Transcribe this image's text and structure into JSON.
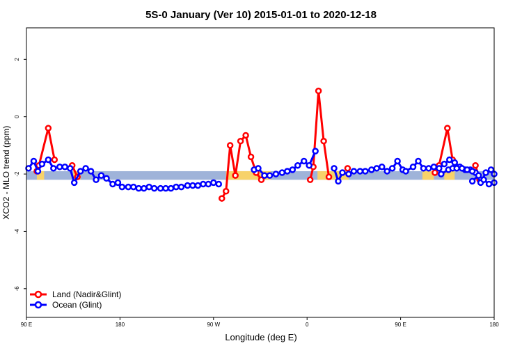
{
  "chart_data": {
    "type": "line",
    "title": "5S-0 January (Ver 10)   2015-01-01 to 2020-12-18",
    "xlabel": "Longitude (deg E)",
    "ylabel": "XCO2 - MLO trend (ppm)",
    "xlim": [
      90,
      540
    ],
    "ylim": [
      -7,
      3.1
    ],
    "x_ticks": [
      {
        "value": 90,
        "label": "90 E"
      },
      {
        "value": 180,
        "label": "180"
      },
      {
        "value": 270,
        "label": "90 W"
      },
      {
        "value": 360,
        "label": "0"
      },
      {
        "value": 450,
        "label": "90 E"
      },
      {
        "value": 540,
        "label": "180"
      }
    ],
    "y_ticks": [
      {
        "value": 2,
        "label": "2"
      },
      {
        "value": 0,
        "label": "0"
      },
      {
        "value": -2,
        "label": "-2"
      },
      {
        "value": -4,
        "label": "-4"
      },
      {
        "value": -6,
        "label": "-6"
      }
    ],
    "legend_position": "bottom-left",
    "band": {
      "ymin": -2.2,
      "ymax": -1.9,
      "color": "#9fb3d9"
    },
    "land_strips": [
      [
        100,
        107
      ],
      [
        135,
        142
      ],
      [
        282,
        325
      ],
      [
        370,
        400
      ],
      [
        471,
        482
      ],
      [
        492,
        502
      ]
    ],
    "land_strip_color": "#f7d26a",
    "series": [
      {
        "name": "Land (Nadir&Glint)",
        "color": "#ff0000",
        "segments": [
          [
            [
              100,
              -1.9
            ],
            [
              102,
              -1.7
            ],
            [
              111,
              -0.4
            ],
            [
              117,
              -1.5
            ]
          ],
          [
            [
              134,
              -1.7
            ],
            [
              139,
              -2.1
            ]
          ],
          [
            [
              278,
              -2.85
            ],
            [
              282,
              -2.6
            ],
            [
              286,
              -1.0
            ],
            [
              291,
              -2.05
            ],
            [
              296,
              -0.85
            ],
            [
              301,
              -0.65
            ],
            [
              306,
              -1.4
            ],
            [
              311,
              -1.95
            ],
            [
              316,
              -2.2
            ]
          ],
          [
            [
              363,
              -2.2
            ],
            [
              366,
              -1.75
            ],
            [
              371,
              0.9
            ],
            [
              376,
              -0.85
            ],
            [
              381,
              -2.1
            ]
          ],
          [
            [
              399,
              -1.8
            ]
          ],
          [
            [
              483,
              -1.95
            ],
            [
              487,
              -1.7
            ],
            [
              495,
              -0.4
            ],
            [
              500,
              -1.5
            ]
          ],
          [
            [
              522,
              -1.7
            ],
            [
              526,
              -2.2
            ]
          ]
        ]
      },
      {
        "name": "Ocean (Glint)",
        "color": "#0000ff",
        "segments": [
          [
            [
              92,
              -1.8
            ],
            [
              97,
              -1.55
            ],
            [
              101,
              -1.9
            ],
            [
              105,
              -1.65
            ],
            [
              111,
              -1.5
            ],
            [
              116,
              -1.8
            ],
            [
              122,
              -1.75
            ],
            [
              127,
              -1.75
            ],
            [
              132,
              -1.8
            ],
            [
              136,
              -2.3
            ],
            [
              142,
              -1.9
            ],
            [
              147,
              -1.8
            ],
            [
              152,
              -1.9
            ],
            [
              157,
              -2.2
            ],
            [
              162,
              -2.05
            ],
            [
              167,
              -2.15
            ],
            [
              173,
              -2.35
            ],
            [
              178,
              -2.3
            ],
            [
              182,
              -2.45
            ],
            [
              188,
              -2.45
            ],
            [
              193,
              -2.45
            ],
            [
              198,
              -2.5
            ],
            [
              203,
              -2.5
            ],
            [
              208,
              -2.45
            ],
            [
              213,
              -2.5
            ],
            [
              219,
              -2.5
            ],
            [
              224,
              -2.5
            ],
            [
              229,
              -2.5
            ],
            [
              234,
              -2.45
            ],
            [
              239,
              -2.45
            ],
            [
              245,
              -2.4
            ],
            [
              250,
              -2.4
            ],
            [
              255,
              -2.4
            ],
            [
              260,
              -2.35
            ],
            [
              265,
              -2.35
            ],
            [
              270,
              -2.3
            ],
            [
              275,
              -2.35
            ]
          ],
          [
            [
              309,
              -1.85
            ],
            [
              313,
              -1.8
            ],
            [
              319,
              -2.05
            ],
            [
              324,
              -2.05
            ],
            [
              330,
              -2.0
            ],
            [
              336,
              -1.95
            ],
            [
              341,
              -1.9
            ],
            [
              346,
              -1.85
            ],
            [
              351,
              -1.7
            ],
            [
              357,
              -1.55
            ],
            [
              362,
              -1.7
            ],
            [
              368,
              -1.2
            ]
          ],
          [
            [
              386,
              -1.8
            ],
            [
              390,
              -2.25
            ],
            [
              394,
              -1.95
            ],
            [
              400,
              -2.0
            ],
            [
              405,
              -1.9
            ],
            [
              411,
              -1.9
            ],
            [
              416,
              -1.9
            ],
            [
              422,
              -1.85
            ],
            [
              427,
              -1.8
            ],
            [
              432,
              -1.75
            ],
            [
              437,
              -1.9
            ],
            [
              442,
              -1.8
            ],
            [
              447,
              -1.55
            ],
            [
              452,
              -1.85
            ],
            [
              455,
              -1.9
            ],
            [
              462,
              -1.75
            ],
            [
              467,
              -1.55
            ],
            [
              472,
              -1.8
            ],
            [
              477,
              -1.8
            ],
            [
              482,
              -1.75
            ],
            [
              487,
              -1.8
            ],
            [
              492,
              -1.65
            ],
            [
              497,
              -1.5
            ],
            [
              502,
              -1.6
            ],
            [
              507,
              -1.75
            ],
            [
              512,
              -1.85
            ],
            [
              517,
              -1.85
            ],
            [
              522,
              -1.95
            ],
            [
              527,
              -2.3
            ],
            [
              532,
              -1.95
            ],
            [
              537,
              -1.85
            ],
            [
              540,
              -2.0
            ]
          ],
          [
            [
              489,
              -2.0
            ],
            [
              496,
              -1.85
            ],
            [
              500,
              -1.8
            ],
            [
              504,
              -1.8
            ],
            [
              509,
              -1.8
            ],
            [
              514,
              -1.85
            ],
            [
              519,
              -1.9
            ]
          ],
          [
            [
              519,
              -2.25
            ],
            [
              525,
              -2.05
            ],
            [
              530,
              -2.2
            ],
            [
              535,
              -2.35
            ],
            [
              540,
              -2.3
            ]
          ]
        ]
      }
    ]
  }
}
